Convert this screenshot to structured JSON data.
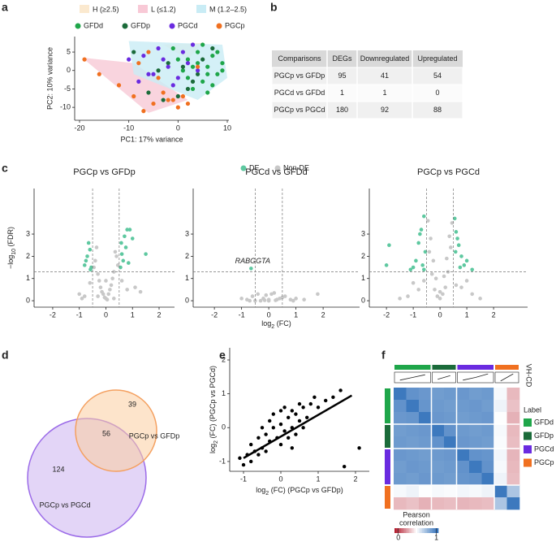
{
  "panel_labels": [
    "a",
    "b",
    "c",
    "d",
    "e",
    "f"
  ],
  "table": {
    "columns": [
      "Comparisons",
      "DEGs",
      "Downregulated",
      "Upregulated"
    ],
    "rows": [
      [
        "PGCp vs GFDp",
        95,
        41,
        54
      ],
      [
        "PGCd vs GFDd",
        1,
        1,
        0
      ],
      [
        "PGCp vs PGCd",
        180,
        92,
        88
      ]
    ]
  },
  "venn": {
    "sets": [
      {
        "name": "PGCp vs GFDp",
        "color": "#f4a060"
      },
      {
        "name": "PGCp vs PGCd",
        "color": "#9b6be8"
      }
    ],
    "only_first": 39,
    "both": 56,
    "only_second": 124
  },
  "chart_data": [
    {
      "type": "pca",
      "x_label": "PC1: 17% variance",
      "y_label": "PC2: 10% variance",
      "xlim": [
        -20.99,
        10.33
      ],
      "ylim": [
        -13.5,
        9.2
      ],
      "xticks": [
        -20,
        -10,
        0,
        10
      ],
      "yticks": [
        -10,
        -5,
        0,
        5
      ],
      "regions": [
        {
          "name": "H (≥2.5)",
          "color": "#fbe9cf",
          "x": [
            -3,
            5,
            2
          ],
          "y": [
            7,
            7.5,
            3
          ]
        },
        {
          "name": "L (≤1.2)",
          "color": "#f8c9d6",
          "x": [
            -19.5,
            -9,
            2,
            -6
          ],
          "y": [
            3.5,
            2,
            -8,
            -11.5
          ]
        },
        {
          "name": "M (1.2–2.5)",
          "color": "#c9ecf5",
          "x": [
            -10,
            9,
            10,
            4,
            -9
          ],
          "y": [
            8,
            7,
            -2,
            -8,
            -1
          ]
        }
      ],
      "series": [
        {
          "name": "GFDd",
          "color": "#1fa64a",
          "x": [
            2,
            4,
            6,
            8,
            9,
            5,
            3,
            7,
            1,
            -1,
            6,
            4,
            8,
            2,
            5,
            9,
            3,
            7,
            0,
            6
          ],
          "y": [
            3,
            5,
            1,
            -1,
            2,
            -3,
            -5,
            4,
            0,
            6,
            -6,
            2,
            5,
            -2,
            7,
            0,
            1,
            -4,
            3,
            -1
          ]
        },
        {
          "name": "GFDp",
          "color": "#1b6b3a",
          "x": [
            -9,
            -6,
            -3,
            0,
            3,
            5,
            -2,
            2,
            4,
            -4,
            7,
            1
          ],
          "y": [
            5,
            -6,
            -8,
            -7,
            -3,
            3,
            2,
            -5,
            -1,
            0,
            6,
            1
          ]
        },
        {
          "name": "PGCd",
          "color": "#6a2be0",
          "x": [
            -10,
            -7,
            -4,
            -2,
            0,
            1,
            2,
            -5,
            -8,
            3,
            -1,
            4,
            -3,
            -6
          ],
          "y": [
            3,
            4,
            6,
            1,
            -2,
            5,
            2,
            -1,
            -3,
            7,
            -4,
            0,
            3,
            -1
          ]
        },
        {
          "name": "PGCp",
          "color": "#f07020",
          "x": [
            -19,
            -16,
            -12,
            -9,
            -7,
            -5,
            -3,
            -1,
            0,
            1,
            2,
            -4,
            -6,
            -8,
            4,
            -2
          ],
          "y": [
            3,
            -1,
            -4,
            -7,
            -11,
            -9,
            -6,
            -8,
            -10,
            -7,
            -9,
            -2,
            5,
            2,
            1,
            -8
          ]
        }
      ]
    },
    {
      "type": "volcano",
      "title": "PGCp vs GFDp",
      "y_label": {
        "pre": "−log",
        "sub": "10",
        "post": " (FDR)"
      },
      "xlim": [
        -2.7,
        2.58
      ],
      "ylim": [
        -0.29,
        5.05
      ],
      "xticks": [
        -2,
        -1,
        0,
        1,
        2
      ],
      "yticks": [
        0,
        1,
        2,
        3
      ],
      "thresholds": {
        "x": [
          -0.5,
          0.5
        ],
        "y": 1.3
      },
      "series": [
        {
          "name": "Non-DE",
          "color": "#c8c8c8",
          "x": [
            -0.4,
            -0.3,
            -0.2,
            -0.1,
            0,
            0.1,
            0.2,
            0.3,
            0.4,
            -0.35,
            -0.25,
            0.25,
            0.35,
            -0.15,
            0.15,
            0,
            -0.45,
            0.45,
            -0.6,
            0.6,
            -0.8,
            0.8,
            -1,
            1.1,
            0.05,
            -0.05,
            0.3,
            -0.3,
            1.3,
            -0.9
          ],
          "y": [
            1.8,
            1.2,
            0.6,
            0.3,
            0.1,
            0.3,
            0.7,
            1.3,
            2.0,
            2.4,
            0.9,
            1.0,
            2.2,
            0.4,
            0.5,
            0.9,
            1.5,
            1.6,
            0.8,
            0.9,
            0.2,
            0.5,
            0.3,
            0.6,
            0.05,
            0.15,
            0.1,
            0.2,
            0.4,
            0.1
          ]
        },
        {
          "name": "DE",
          "color": "#5ec8a0",
          "x": [
            -0.8,
            -0.7,
            -0.6,
            -0.55,
            -0.65,
            -0.75,
            -0.58,
            0.55,
            0.6,
            0.7,
            0.8,
            0.9,
            1.0,
            0.65,
            0.75,
            1.5,
            0.85,
            0.58
          ],
          "y": [
            1.6,
            2.0,
            2.3,
            1.5,
            2.6,
            1.8,
            1.4,
            1.5,
            2.1,
            2.9,
            3.2,
            3.2,
            2.8,
            1.8,
            2.4,
            2.1,
            1.7,
            2.6
          ]
        }
      ]
    },
    {
      "type": "volcano",
      "title": "PGCd vs GFDd",
      "x_label": {
        "pre": "log",
        "sub": "2",
        "post": " (FC)"
      },
      "annotation": "RABGGTA",
      "xlim": [
        -2.78,
        3.34
      ],
      "ylim": [
        -0.29,
        5.05
      ],
      "xticks": [
        -2,
        -1,
        0,
        1,
        2
      ],
      "yticks": [
        0,
        1,
        2,
        3
      ],
      "thresholds": {
        "x": [
          -0.5,
          0.5
        ],
        "y": 1.3
      },
      "series": [
        {
          "name": "Non-DE",
          "color": "#c8c8c8",
          "x": [
            -1,
            -0.8,
            -0.6,
            -0.4,
            -0.2,
            0,
            0.2,
            0.4,
            0.6,
            0.8,
            1,
            -0.3,
            -0.1,
            0.1,
            0.3,
            0.5,
            -0.5,
            1.8,
            1.3,
            0.9,
            -0.7,
            0.0,
            0.25,
            -0.15
          ],
          "y": [
            0.1,
            0.05,
            0.2,
            0.3,
            0.1,
            0.05,
            0.35,
            0.1,
            0.2,
            0.05,
            0.1,
            0.0,
            0.25,
            0.3,
            0.05,
            0.15,
            0.0,
            0.3,
            0.05,
            0.0,
            0.0,
            0.0,
            0.02,
            0.02
          ]
        },
        {
          "name": "DE",
          "color": "#5ec8a0",
          "x": [
            -0.65
          ],
          "y": [
            1.45
          ]
        }
      ]
    },
    {
      "type": "volcano",
      "title": "PGCp vs PGCd",
      "xlim": [
        -2.64,
        3.27
      ],
      "ylim": [
        -0.29,
        5.05
      ],
      "xticks": [
        -2,
        -1,
        0,
        1,
        2
      ],
      "yticks": [
        0,
        1,
        2,
        3
      ],
      "thresholds": {
        "x": [
          -0.5,
          0.5
        ],
        "y": 1.3
      },
      "series": [
        {
          "name": "Non-DE",
          "color": "#c8c8c8",
          "x": [
            -0.45,
            -0.35,
            -0.25,
            -0.15,
            0,
            0.15,
            0.25,
            0.35,
            0.45,
            -0.4,
            0.4,
            -0.3,
            0.3,
            0,
            -0.1,
            0.1,
            -0.8,
            0.8,
            -1.2,
            1.2,
            -1,
            1,
            0.6,
            -0.6,
            0.2,
            -0.2,
            1.5,
            -1.5
          ],
          "y": [
            3.6,
            2.8,
            1.8,
            1.0,
            0.4,
            1.1,
            1.9,
            2.9,
            3.5,
            2.2,
            2.4,
            1.2,
            1.3,
            0.1,
            0.2,
            0.3,
            0.5,
            0.6,
            0.2,
            0.3,
            0.8,
            0.9,
            0.7,
            0.9,
            0.6,
            0.5,
            0.1,
            0.1
          ]
        },
        {
          "name": "DE",
          "color": "#5ec8a0",
          "x": [
            -0.6,
            -0.7,
            -0.8,
            -0.9,
            -1.0,
            -0.55,
            -0.65,
            -0.75,
            -1.9,
            -2.0,
            -1.1,
            0.55,
            0.6,
            0.7,
            0.8,
            0.9,
            1.0,
            1.2,
            0.65,
            0.75,
            -0.6,
            0.58
          ],
          "y": [
            3.8,
            3.2,
            2.6,
            1.8,
            1.5,
            2.2,
            1.6,
            3.0,
            2.5,
            1.6,
            1.4,
            3.7,
            3.1,
            2.5,
            2.0,
            1.6,
            1.8,
            1.4,
            2.8,
            1.5,
            1.4,
            2.2
          ]
        }
      ]
    },
    {
      "type": "scatter",
      "x_label": {
        "pre": "log",
        "sub": "2",
        "post": " (FC) (PGCp vs GFDp)"
      },
      "y_label": {
        "pre": "log",
        "sub": "2",
        "post": " (FC) (PGCp vs PGCd)"
      },
      "xlim": [
        -1.37,
        2.37
      ],
      "ylim": [
        -1.29,
        2.36
      ],
      "xticks": [
        -1,
        0,
        1,
        2
      ],
      "yticks": [
        -1,
        0,
        1,
        2
      ],
      "color": "#000000",
      "x": [
        -1.1,
        -0.9,
        -0.8,
        -0.7,
        -0.6,
        -0.5,
        -0.4,
        -0.3,
        -0.2,
        -0.1,
        0,
        0.1,
        0.2,
        0.3,
        0.4,
        0.5,
        0.6,
        0.7,
        0.8,
        1.0,
        1.2,
        1.4,
        -0.6,
        -0.3,
        0,
        0.3,
        0.6,
        -0.5,
        0.2,
        0.5,
        -0.2,
        0.1,
        0.4,
        0.9,
        -0.8,
        1.6,
        2.1,
        1.7,
        -1.0,
        0.0,
        0.3,
        -0.4
      ],
      "y": [
        -0.9,
        -0.8,
        -0.5,
        -0.7,
        -0.3,
        -0.6,
        -0.2,
        -0.4,
        0.0,
        -0.3,
        0.1,
        -0.1,
        0.3,
        0.0,
        0.4,
        0.2,
        0.6,
        0.3,
        0.7,
        0.6,
        0.8,
        0.9,
        -0.8,
        0.2,
        -0.5,
        0.5,
        0.0,
        0.0,
        -0.3,
        0.7,
        0.4,
        0.6,
        -0.2,
        0.9,
        -1.0,
        1.1,
        -0.6,
        -1.15,
        -1.1,
        0.5,
        -0.6,
        -0.7
      ],
      "fit": {
        "x": [
          -1,
          1.9
        ],
        "y": [
          -0.9,
          0.95
        ]
      }
    },
    {
      "type": "heatmap",
      "legend_title": "Label",
      "colorbar_title": [
        "Pearson",
        "correlation"
      ],
      "clim": [
        -0.1,
        1.05
      ],
      "colorbar_ticks": [
        0,
        1
      ],
      "colorscale": [
        "#b2182b",
        "#ffffff",
        "#2b6cb8"
      ],
      "track": {
        "name": "VH-CD",
        "values": [
          0.2,
          0.5,
          0.8,
          0.3,
          0.7,
          0.2,
          0.5,
          0.9,
          0.1,
          0.9
        ]
      },
      "groups": [
        {
          "name": "GFDd",
          "color": "#1fa64a",
          "n": 3
        },
        {
          "name": "GFDp",
          "color": "#1b6b3a",
          "n": 2
        },
        {
          "name": "PGCd",
          "color": "#6a2be0",
          "n": 3
        },
        {
          "name": "PGCp",
          "color": "#f07020",
          "n": 2
        }
      ],
      "matrix": [
        [
          1,
          0.9,
          0.88,
          0.86,
          0.87,
          0.88,
          0.86,
          0.87,
          0.5,
          0.3
        ],
        [
          0.9,
          1,
          0.89,
          0.87,
          0.86,
          0.87,
          0.88,
          0.86,
          0.52,
          0.32
        ],
        [
          0.88,
          0.89,
          1,
          0.88,
          0.87,
          0.86,
          0.87,
          0.88,
          0.48,
          0.28
        ],
        [
          0.86,
          0.87,
          0.88,
          1,
          0.9,
          0.87,
          0.86,
          0.87,
          0.5,
          0.3
        ],
        [
          0.87,
          0.86,
          0.87,
          0.9,
          1,
          0.88,
          0.87,
          0.86,
          0.49,
          0.31
        ],
        [
          0.88,
          0.87,
          0.86,
          0.87,
          0.88,
          1,
          0.9,
          0.89,
          0.51,
          0.29
        ],
        [
          0.86,
          0.88,
          0.87,
          0.86,
          0.87,
          0.9,
          1,
          0.9,
          0.5,
          0.3
        ],
        [
          0.87,
          0.86,
          0.88,
          0.87,
          0.86,
          0.89,
          0.9,
          1,
          0.52,
          0.31
        ],
        [
          0.5,
          0.52,
          0.48,
          0.5,
          0.49,
          0.51,
          0.5,
          0.52,
          1,
          0.7
        ],
        [
          0.3,
          0.32,
          0.28,
          0.3,
          0.31,
          0.29,
          0.3,
          0.31,
          0.7,
          1
        ]
      ]
    }
  ]
}
